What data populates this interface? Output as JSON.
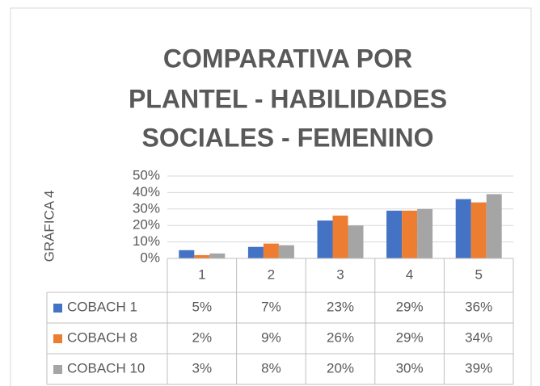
{
  "chart_data": {
    "type": "bar",
    "title": [
      "COMPARATIVA POR",
      "PLANTEL - HABILIDADES",
      "SOCIALES - FEMENINO"
    ],
    "y_label": "GRÁFICA 4",
    "categories": [
      "1",
      "2",
      "3",
      "4",
      "5"
    ],
    "series": [
      {
        "name": "COBACH 1",
        "color": "#4472c4",
        "values": [
          5,
          7,
          23,
          29,
          36
        ],
        "value_labels": [
          "5%",
          "7%",
          "23%",
          "29%",
          "36%"
        ]
      },
      {
        "name": "COBACH 8",
        "color": "#ed7d31",
        "values": [
          2,
          9,
          26,
          29,
          34
        ],
        "value_labels": [
          "2%",
          "9%",
          "26%",
          "29%",
          "34%"
        ]
      },
      {
        "name": "COBACH 10",
        "color": "#a5a5a5",
        "values": [
          3,
          8,
          20,
          30,
          39
        ],
        "value_labels": [
          "3%",
          "8%",
          "20%",
          "30%",
          "39%"
        ]
      }
    ],
    "ylim": [
      0,
      50
    ],
    "yticks": [
      {
        "value": 0,
        "label": "0%"
      },
      {
        "value": 10,
        "label": "10%"
      },
      {
        "value": 20,
        "label": "20%"
      },
      {
        "value": 30,
        "label": "30%"
      },
      {
        "value": 40,
        "label": "40%"
      },
      {
        "value": 50,
        "label": "50%"
      }
    ],
    "grid": true
  }
}
